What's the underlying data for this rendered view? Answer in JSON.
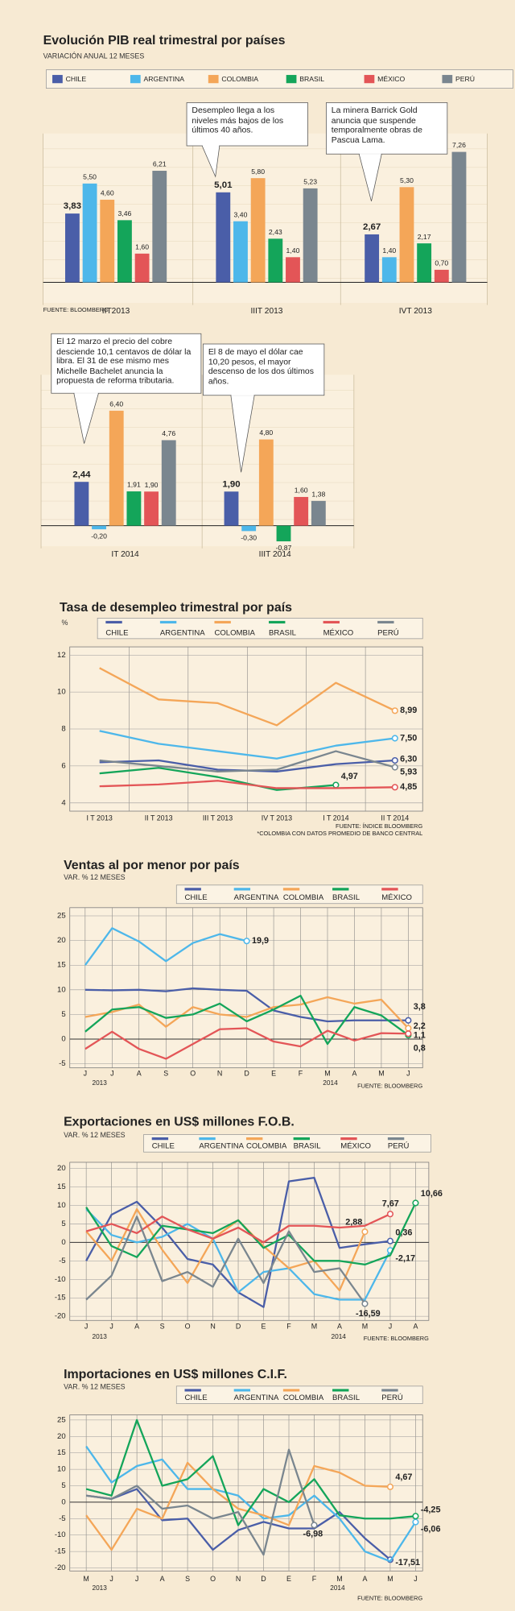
{
  "chart_data": [
    {
      "type": "grouped-bar",
      "title": "Evolución PIB real trimestral por países",
      "subtitle": "VARIACIÓN ANUAL 12 MESES",
      "source": "FUENTE: BLOOMBERG",
      "categories": [
        "IIT2013",
        "IIIT 2013",
        "IVT 2013",
        "IT 2014",
        "IIIT 2014"
      ],
      "series": [
        {
          "name": "CHILE",
          "color": "#4a5ea8",
          "values": [
            3.83,
            5.01,
            2.67,
            2.44,
            1.9
          ],
          "value_labels": [
            "3,83",
            "5,01",
            "2,67",
            "2,44",
            "1,90"
          ]
        },
        {
          "name": "ARGENTINA",
          "color": "#4db7ea",
          "values": [
            5.5,
            3.4,
            1.4,
            -0.2,
            -0.3
          ],
          "value_labels": [
            "5,50",
            "3,40",
            "1,40",
            "-0,20",
            "-0,30"
          ]
        },
        {
          "name": "COLOMBIA",
          "color": "#f4a658",
          "values": [
            4.6,
            5.8,
            5.3,
            6.4,
            4.8
          ],
          "value_labels": [
            "4,60",
            "5,80",
            "5,30",
            "6,40",
            "4,80"
          ]
        },
        {
          "name": "BRASIL",
          "color": "#14a55a",
          "values": [
            3.46,
            2.43,
            2.17,
            1.91,
            -0.87
          ],
          "value_labels": [
            "3,46",
            "2,43",
            "2,17",
            "1,91",
            "-0,87"
          ]
        },
        {
          "name": "MÉXICO",
          "color": "#e35557",
          "values": [
            1.6,
            1.4,
            0.7,
            1.9,
            1.6
          ],
          "value_labels": [
            "1,60",
            "1,40",
            "0,70",
            "1,90",
            "1,60"
          ]
        },
        {
          "name": "PERÚ",
          "color": "#7a868f",
          "values": [
            6.21,
            5.23,
            7.26,
            4.76,
            1.38
          ],
          "value_labels": [
            "6,21",
            "5,23",
            "7,26",
            "4,76",
            "1,38"
          ]
        }
      ],
      "annotations": [
        "Desempleo llega a los niveles más bajos de los últimos 40 años.",
        "La minera Barrick Gold anuncia que suspende temporalmente obras de Pascua Lama.",
        "El 12 marzo el precio del cobre desciende 10,1 centavos de dólar la libra. El 31 de ese mismo mes Michelle Bachelet anuncia la propuesta de reforma tributaria.",
        "El 8 de mayo el dólar cae 10,20 pesos, el mayor descenso de los dos últimos años."
      ]
    },
    {
      "type": "line",
      "title": "Tasa de desempleo trimestral  por país",
      "y_label": "%",
      "notes": [
        "FUENTE: ÍNDICE BLOOMBERG",
        "*COLOMBIA CON DATOS PROMEDIO DE BANCO CENTRAL"
      ],
      "categories": [
        "I T 2013",
        "II T 2013",
        "III T 2013",
        "IV T 2013",
        "I T 2014",
        "II T 2014"
      ],
      "ylim": [
        4,
        12
      ],
      "yticks": [
        4,
        6,
        8,
        10,
        12
      ],
      "grid": true,
      "series": [
        {
          "name": "CHILE",
          "color": "#4a5ea8",
          "values": [
            6.2,
            6.3,
            5.8,
            5.7,
            6.1,
            6.3
          ],
          "value_labels": [
            null,
            null,
            null,
            null,
            null,
            "6,30"
          ]
        },
        {
          "name": "ARGENTINA",
          "color": "#4db7ea",
          "values": [
            7.9,
            7.2,
            6.8,
            6.4,
            7.1,
            7.5
          ],
          "value_labels": [
            null,
            null,
            null,
            null,
            null,
            "7,50"
          ]
        },
        {
          "name": "COLOMBIA",
          "color": "#f4a658",
          "values": [
            11.3,
            9.6,
            9.4,
            8.2,
            10.5,
            8.99
          ],
          "value_labels": [
            null,
            null,
            null,
            null,
            null,
            "8,99"
          ]
        },
        {
          "name": "BRASIL",
          "color": "#14a55a",
          "values": [
            5.6,
            5.9,
            5.4,
            4.7,
            4.97,
            null
          ],
          "value_labels": [
            null,
            null,
            null,
            null,
            "4,97",
            null
          ]
        },
        {
          "name": "MÉXICO",
          "color": "#e35557",
          "values": [
            4.9,
            5.0,
            5.2,
            4.8,
            4.8,
            4.85
          ],
          "value_labels": [
            null,
            null,
            null,
            null,
            null,
            "4,85"
          ]
        },
        {
          "name": "PERÚ",
          "color": "#7a868f",
          "values": [
            6.3,
            6.0,
            5.7,
            5.8,
            6.8,
            5.93
          ],
          "value_labels": [
            null,
            null,
            null,
            null,
            null,
            "5,93"
          ]
        }
      ]
    },
    {
      "type": "line",
      "title": "Ventas al por menor por país",
      "y_label": "VAR. % 12 MESES",
      "notes": [
        "FUENTE: BLOOMBERG"
      ],
      "years": [
        "2013",
        "2014"
      ],
      "categories": [
        "J",
        "J",
        "A",
        "S",
        "O",
        "N",
        "D",
        "E",
        "F",
        "M",
        "A",
        "M",
        "J"
      ],
      "ylim": [
        -5,
        25
      ],
      "yticks": [
        -5,
        0,
        5,
        10,
        15,
        20,
        25
      ],
      "grid": true,
      "series": [
        {
          "name": "CHILE",
          "color": "#4a5ea8",
          "values": [
            10,
            9.9,
            10,
            9.7,
            10.3,
            10,
            9.8,
            5.8,
            4.5,
            3.6,
            3.8,
            3.8,
            3.8
          ],
          "value_labels": [
            null,
            null,
            null,
            null,
            null,
            null,
            null,
            null,
            null,
            null,
            null,
            null,
            "3,8"
          ]
        },
        {
          "name": "ARGENTINA",
          "color": "#4db7ea",
          "values": [
            15,
            22.5,
            19.8,
            15.8,
            19.5,
            21.3,
            19.9,
            null,
            null,
            null,
            null,
            null,
            null
          ],
          "value_labels": [
            null,
            null,
            null,
            null,
            null,
            null,
            "19,9",
            null,
            null,
            null,
            null,
            null,
            null
          ]
        },
        {
          "name": "COLOMBIA",
          "color": "#f4a658",
          "values": [
            4.5,
            5.5,
            7,
            2.5,
            6.5,
            5,
            4.5,
            6.5,
            7,
            8.5,
            7.2,
            8,
            2.2
          ],
          "value_labels": [
            null,
            null,
            null,
            null,
            null,
            null,
            null,
            null,
            null,
            null,
            null,
            null,
            "2,2"
          ]
        },
        {
          "name": "BRASIL",
          "color": "#14a55a",
          "values": [
            1.5,
            6,
            6.5,
            4.3,
            5,
            7.2,
            3.6,
            6,
            8.8,
            -1,
            6.5,
            4.8,
            0.8
          ],
          "value_labels": [
            null,
            null,
            null,
            null,
            null,
            null,
            null,
            null,
            null,
            null,
            null,
            null,
            "0,8"
          ]
        },
        {
          "name": "MÉXICO",
          "color": "#e35557",
          "values": [
            -2,
            1.5,
            -2,
            -4,
            -1,
            2,
            2.2,
            -0.5,
            -1.5,
            1.7,
            -0.3,
            1.2,
            1.1
          ],
          "value_labels": [
            null,
            null,
            null,
            null,
            null,
            null,
            null,
            null,
            null,
            null,
            null,
            null,
            "1,1"
          ]
        }
      ]
    },
    {
      "type": "line",
      "title": "Exportaciones en US$ millones F.O.B.",
      "y_label": "VAR. % 12 MESES",
      "notes": [
        "FUENTE: BLOOMBERG"
      ],
      "years": [
        "2013",
        "2014"
      ],
      "categories": [
        "J",
        "J",
        "A",
        "S",
        "O",
        "N",
        "D",
        "E",
        "F",
        "M",
        "A",
        "M",
        "J",
        "A"
      ],
      "ylim": [
        -20,
        20
      ],
      "yticks": [
        -20,
        -15,
        -10,
        -5,
        0,
        5,
        10,
        15,
        20
      ],
      "grid": true,
      "series": [
        {
          "name": "CHILE",
          "color": "#4a5ea8",
          "values": [
            -5,
            7.5,
            11,
            4,
            -4.5,
            -6,
            -13.5,
            -17.5,
            16.5,
            17.5,
            -1.5,
            -0.5,
            0.36,
            null
          ],
          "value_labels": [
            null,
            null,
            null,
            null,
            null,
            null,
            null,
            null,
            null,
            null,
            null,
            null,
            "0,36",
            null
          ]
        },
        {
          "name": "ARGENTINA",
          "color": "#4db7ea",
          "values": [
            9,
            2,
            0,
            1.5,
            5,
            1,
            -13.5,
            -8,
            -7,
            -14,
            -15.5,
            -15.5,
            -2.17,
            null
          ],
          "value_labels": [
            null,
            null,
            null,
            null,
            null,
            null,
            null,
            null,
            null,
            null,
            null,
            null,
            "-2,17",
            null
          ]
        },
        {
          "name": "COLOMBIA",
          "color": "#f4a658",
          "values": [
            3,
            -5,
            9,
            -2,
            -11,
            1,
            6,
            -1,
            -7,
            -5,
            -13,
            2.88,
            null,
            null
          ],
          "value_labels": [
            null,
            null,
            null,
            null,
            null,
            null,
            null,
            null,
            null,
            null,
            null,
            "2,88",
            null,
            null
          ]
        },
        {
          "name": "BRASIL",
          "color": "#14a55a",
          "values": [
            9.5,
            -1,
            -4,
            4.5,
            3.5,
            2.5,
            6,
            -1.5,
            2,
            -5,
            -5,
            -6,
            -3.5,
            10.66
          ],
          "value_labels": [
            null,
            null,
            null,
            null,
            null,
            null,
            null,
            null,
            null,
            null,
            null,
            null,
            null,
            "10,66"
          ]
        },
        {
          "name": "MÉXICO",
          "color": "#e35557",
          "values": [
            3,
            5,
            2.5,
            7,
            3.5,
            1,
            4,
            0,
            4.5,
            4.5,
            4,
            4.5,
            7.67,
            null
          ],
          "value_labels": [
            null,
            null,
            null,
            null,
            null,
            null,
            null,
            null,
            null,
            null,
            null,
            null,
            "7,67",
            null
          ]
        },
        {
          "name": "PERÚ",
          "color": "#7a868f",
          "values": [
            -15.5,
            -9,
            7,
            -10.5,
            -8,
            -12,
            1,
            -11,
            3,
            -8,
            -7,
            -16.59,
            null,
            null
          ],
          "value_labels": [
            null,
            null,
            null,
            null,
            null,
            null,
            null,
            null,
            null,
            null,
            null,
            "-16,59",
            null,
            null
          ]
        }
      ]
    },
    {
      "type": "line",
      "title": "Importaciones en US$ millones C.I.F.",
      "y_label": "VAR. % 12 MESES",
      "notes": [
        "FUENTE: BLOOMBERG"
      ],
      "years": [
        "2013",
        "2014"
      ],
      "categories": [
        "M",
        "J",
        "J",
        "A",
        "S",
        "O",
        "N",
        "D",
        "E",
        "F",
        "M",
        "A",
        "M",
        "J"
      ],
      "ylim": [
        -20,
        25
      ],
      "yticks": [
        -20,
        -15,
        -10,
        -5,
        0,
        5,
        10,
        15,
        20,
        25
      ],
      "grid": true,
      "series": [
        {
          "name": "CHILE",
          "color": "#4a5ea8",
          "values": [
            2,
            1,
            4,
            -5.5,
            -5,
            -14.5,
            -8.5,
            -6,
            -8,
            -8,
            -3,
            -11,
            -17.51,
            null
          ],
          "value_labels": [
            null,
            null,
            null,
            null,
            null,
            null,
            null,
            null,
            null,
            null,
            null,
            null,
            "-17,51",
            null
          ]
        },
        {
          "name": "ARGENTINA",
          "color": "#4db7ea",
          "values": [
            17,
            6,
            11,
            13,
            4,
            4,
            2,
            -5,
            -4,
            2,
            -5,
            -15,
            -18,
            -6.06
          ],
          "value_labels": [
            null,
            null,
            null,
            null,
            null,
            null,
            null,
            null,
            null,
            null,
            null,
            null,
            null,
            "-6,06"
          ]
        },
        {
          "name": "COLOMBIA",
          "color": "#f4a658",
          "values": [
            -4,
            -14.5,
            -2,
            -5,
            12,
            4,
            -2,
            -4,
            -7,
            11,
            9,
            5,
            4.67,
            null
          ],
          "value_labels": [
            null,
            null,
            null,
            null,
            null,
            null,
            null,
            null,
            null,
            null,
            null,
            null,
            "4,67",
            null
          ]
        },
        {
          "name": "BRASIL",
          "color": "#14a55a",
          "values": [
            4,
            2,
            25,
            5,
            7,
            14,
            -7,
            4,
            0,
            7,
            -4,
            -5,
            -5,
            -4.25
          ],
          "value_labels": [
            null,
            null,
            null,
            null,
            null,
            null,
            null,
            null,
            null,
            null,
            null,
            null,
            null,
            "-4,25"
          ]
        },
        {
          "name": "PERÚ",
          "color": "#7a868f",
          "values": [
            2,
            1,
            5,
            -2,
            -1,
            -5,
            -3,
            -16,
            16,
            -6.98,
            null,
            null,
            null,
            null
          ],
          "value_labels": [
            null,
            null,
            null,
            null,
            null,
            null,
            null,
            null,
            null,
            "-6,98",
            null,
            null,
            null,
            null
          ]
        }
      ]
    }
  ]
}
